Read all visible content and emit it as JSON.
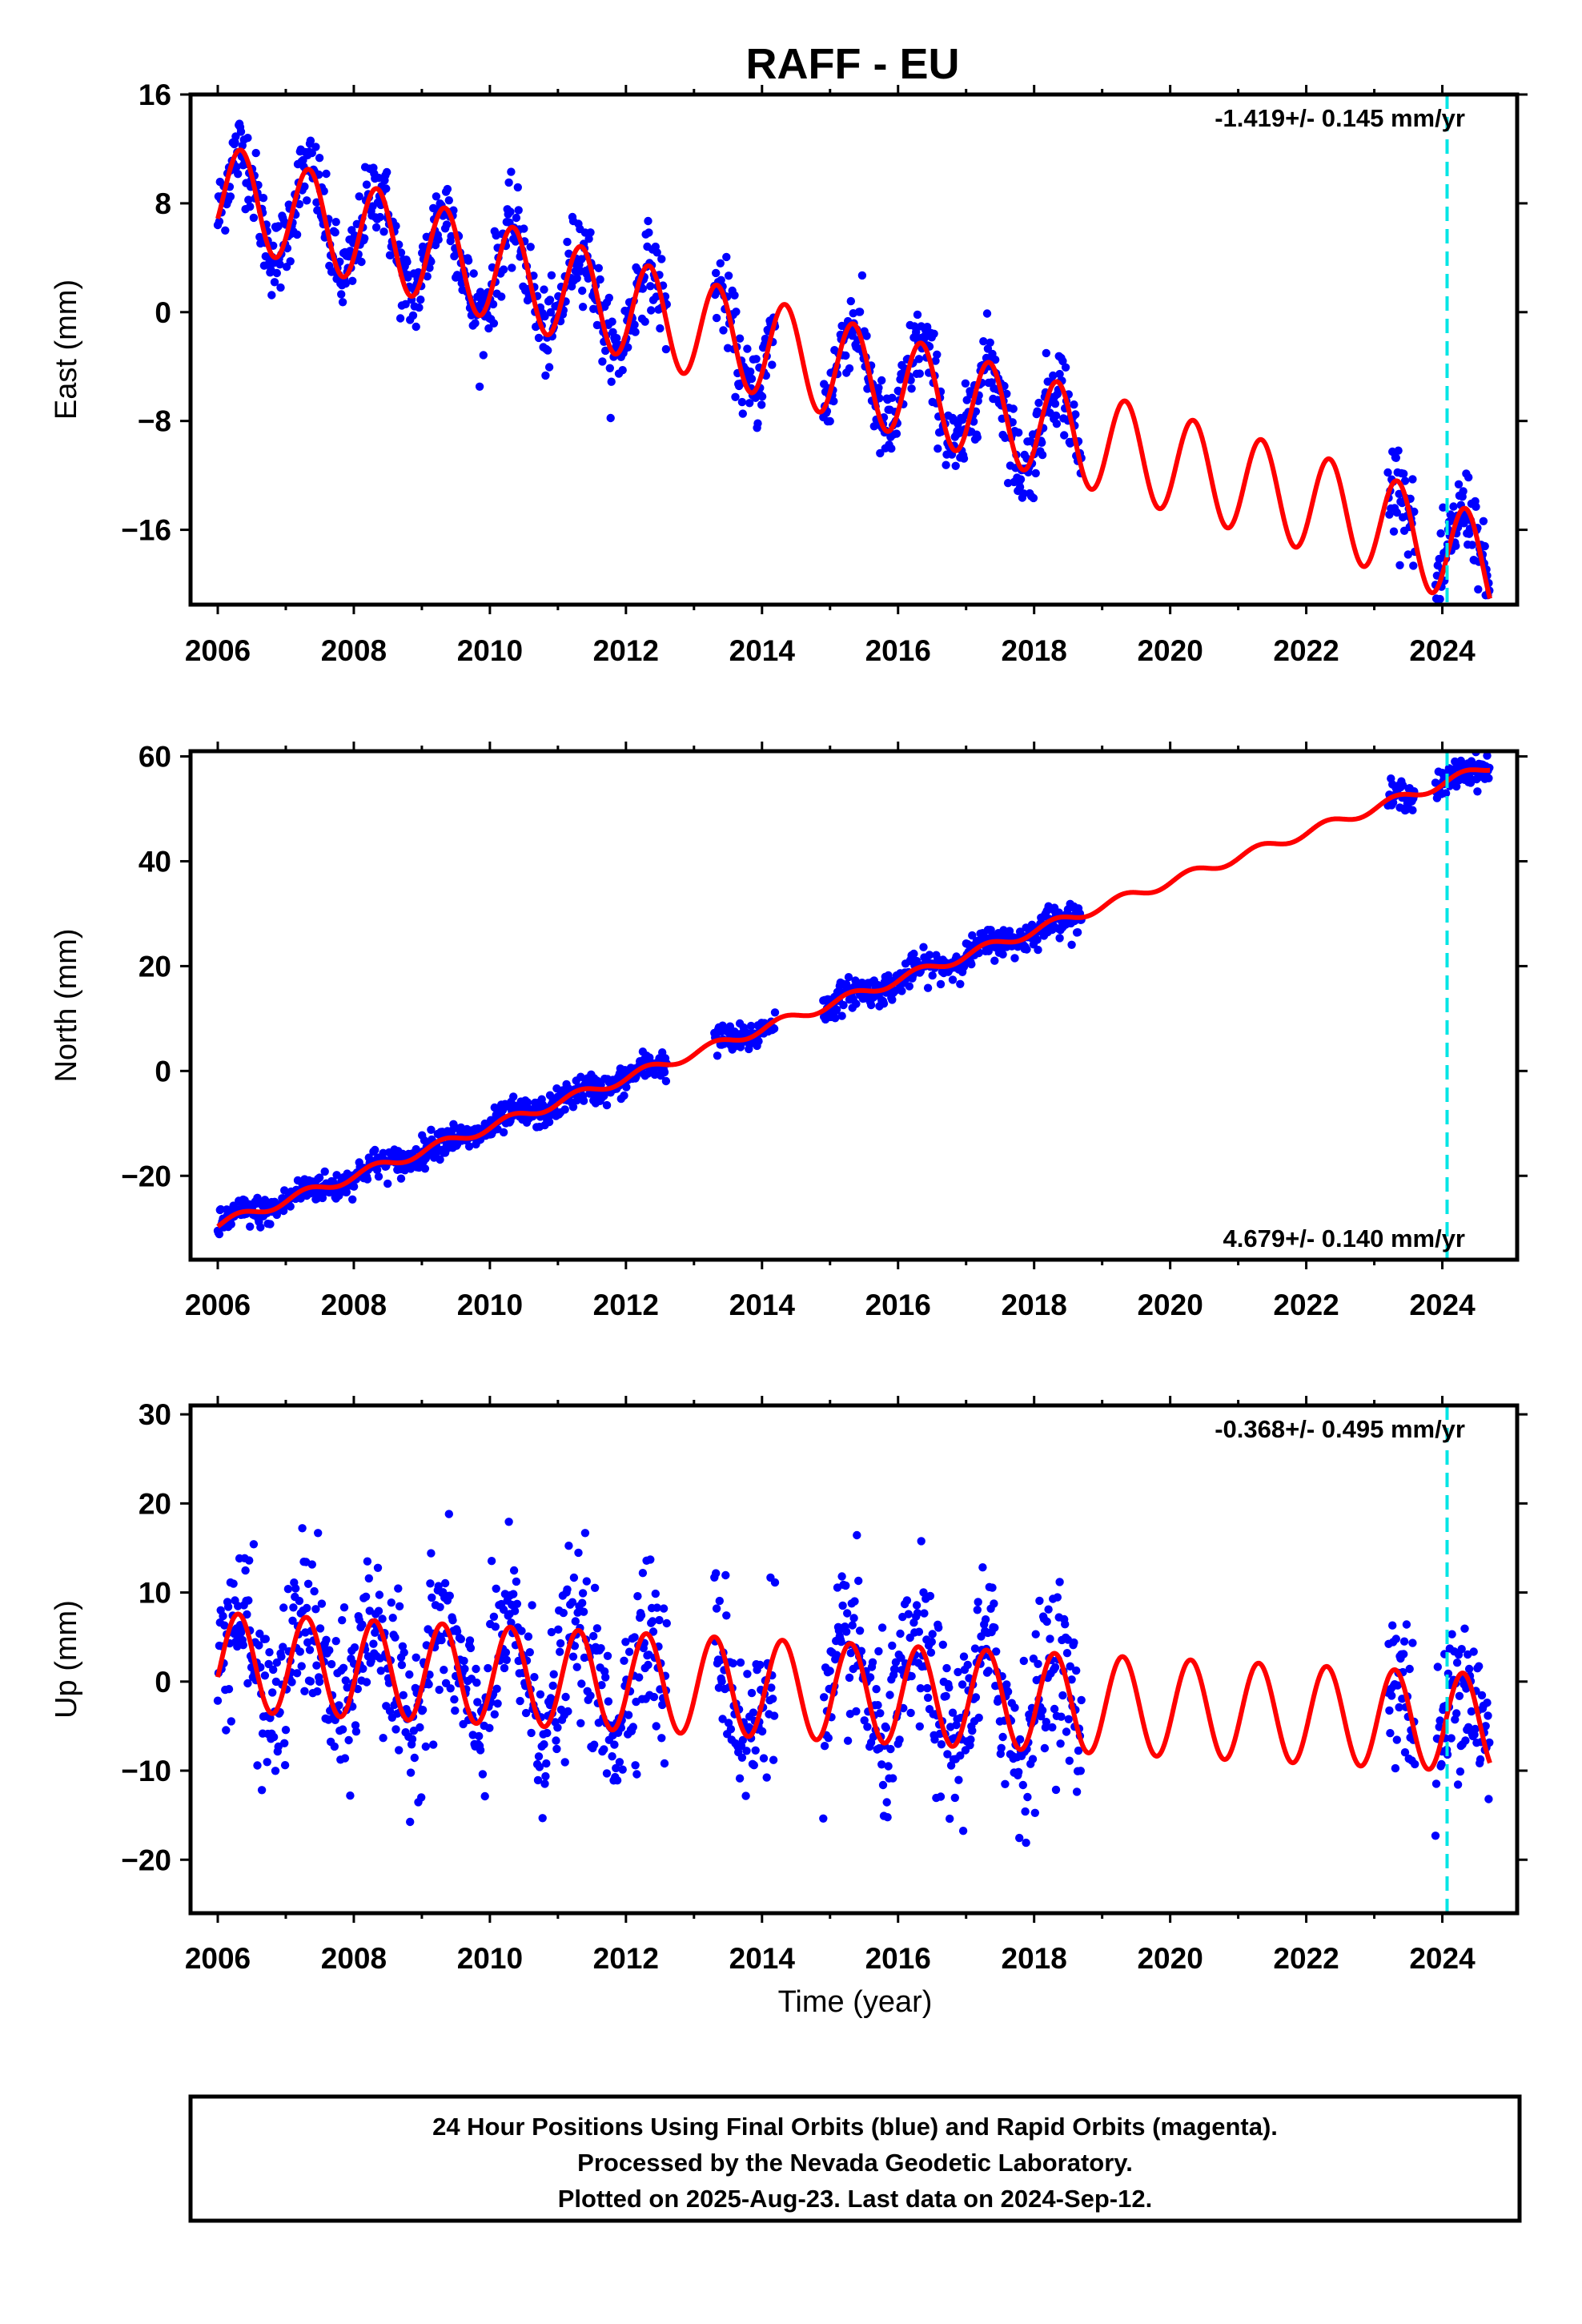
{
  "title": "RAFF - EU",
  "footer": {
    "lines": [
      "24 Hour Positions Using Final Orbits (blue) and Rapid Orbits (magenta).",
      "Processed by the Nevada Geodetic Laboratory.",
      "Plotted on 2025-Aug-23. Last data on 2024-Sep-12."
    ]
  },
  "colors": {
    "data": "#0000ff",
    "model": "#ff0000",
    "event_line": "#00e5e5",
    "frame": "#000000"
  },
  "chart_data": [
    {
      "type": "scatter",
      "name": "east",
      "ylabel": "East (mm)",
      "xlabel": "",
      "xlim": [
        2005.6,
        2025.1
      ],
      "ylim": [
        -21.5,
        16
      ],
      "xticks": [
        "2006",
        "2008",
        "2010",
        "2012",
        "2014",
        "2016",
        "2018",
        "2020",
        "2022",
        "2024"
      ],
      "yticks": [
        "16",
        "8",
        "0",
        "−8",
        "−16"
      ],
      "ytick_values": [
        16,
        8,
        0,
        -8,
        -16
      ],
      "rate_label": "-1.419+/- 0.145 mm/yr",
      "rate_position": "top-right",
      "event_line_x": 2024.07,
      "model": {
        "intercept": 8.8,
        "rate": -1.419,
        "amplitude": 3.6,
        "phase": 0.34,
        "start": 2006.0,
        "end": 2024.7,
        "rate_break": -0.6,
        "rate_break_year": 2023.0
      },
      "data_segments": [
        [
          2006.0,
          2012.6
        ],
        [
          2013.3,
          2014.2
        ],
        [
          2014.9,
          2018.7
        ],
        [
          2023.2,
          2023.6
        ],
        [
          2023.9,
          2024.7
        ]
      ],
      "scatter_sd": 1.5
    },
    {
      "type": "scatter",
      "name": "north",
      "ylabel": "North (mm)",
      "xlabel": "",
      "xlim": [
        2005.6,
        2025.1
      ],
      "ylim": [
        -36,
        61
      ],
      "xticks": [
        "2006",
        "2008",
        "2010",
        "2012",
        "2014",
        "2016",
        "2018",
        "2020",
        "2022",
        "2024"
      ],
      "yticks": [
        "60",
        "40",
        "20",
        "0",
        "−20"
      ],
      "ytick_values": [
        60,
        40,
        20,
        0,
        -20
      ],
      "rate_label": "4.679+/- 0.140 mm/yr",
      "rate_position": "bottom-right",
      "event_line_x": 2024.07,
      "model": {
        "intercept": -29.4,
        "rate": 4.679,
        "amplitude": 0.9,
        "phase": 0.3,
        "start": 2006.0,
        "end": 2024.7
      },
      "data_segments": [
        [
          2006.0,
          2012.6
        ],
        [
          2013.3,
          2014.2
        ],
        [
          2014.9,
          2018.7
        ],
        [
          2023.2,
          2023.6
        ],
        [
          2023.9,
          2024.7
        ]
      ],
      "scatter_sd": 1.4
    },
    {
      "type": "scatter",
      "name": "up",
      "ylabel": "Up (mm)",
      "xlabel": "Time (year)",
      "xlim": [
        2005.6,
        2025.1
      ],
      "ylim": [
        -26,
        31
      ],
      "xticks": [
        "2006",
        "2008",
        "2010",
        "2012",
        "2014",
        "2016",
        "2018",
        "2020",
        "2022",
        "2024"
      ],
      "yticks": [
        "30",
        "20",
        "10",
        "0",
        "−10",
        "−20"
      ],
      "ytick_values": [
        30,
        20,
        10,
        0,
        -10,
        -20
      ],
      "rate_label": "-0.368+/- 0.495 mm/yr",
      "rate_position": "top-right",
      "event_line_x": 2024.07,
      "model": {
        "intercept": 2.2,
        "rate": -0.368,
        "amplitude": 5.5,
        "phase": 0.3,
        "start": 2006.0,
        "end": 2024.7
      },
      "data_segments": [
        [
          2006.0,
          2012.6
        ],
        [
          2013.3,
          2014.2
        ],
        [
          2014.9,
          2018.7
        ],
        [
          2023.2,
          2023.6
        ],
        [
          2023.9,
          2024.7
        ]
      ],
      "scatter_sd": 4.6
    }
  ]
}
